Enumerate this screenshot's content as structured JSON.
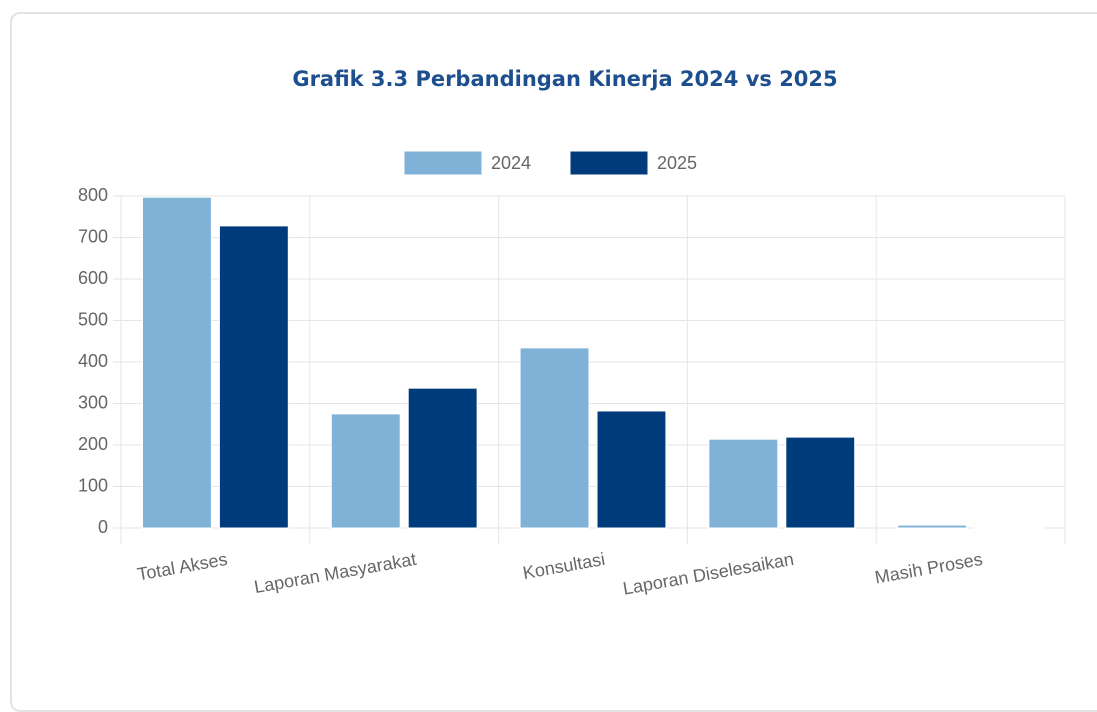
{
  "chart_data": {
    "type": "bar",
    "title": "Grafik 3.3 Perbandingan Kinerja 2024 vs 2025",
    "categories": [
      "Total Akses",
      "Laporan Masyarakat",
      "Konsultasi",
      "Laporan Diselesaikan",
      "Masih Proses"
    ],
    "series": [
      {
        "name": "2024",
        "color": "#7fb2d6",
        "values": [
          797,
          275,
          434,
          214,
          7
        ]
      },
      {
        "name": "2025",
        "color": "#003c7b",
        "values": [
          728,
          337,
          282,
          219,
          2
        ]
      }
    ],
    "ylim": [
      0,
      800
    ],
    "yticks": [
      0,
      100,
      200,
      300,
      400,
      500,
      600,
      700,
      800
    ],
    "grid": true,
    "legend": "top"
  }
}
